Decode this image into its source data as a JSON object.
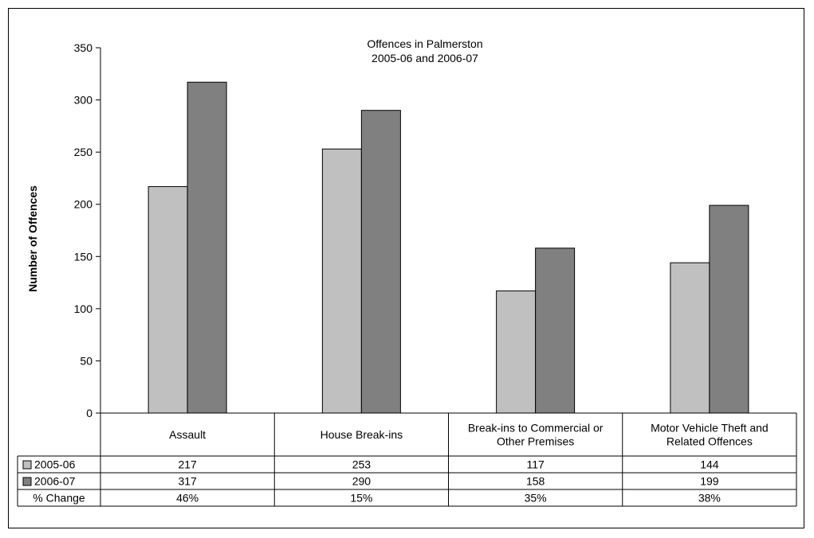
{
  "chart_data": {
    "type": "bar",
    "title_lines": [
      "Offences in Palmerston",
      "2005-06 and 2006-07"
    ],
    "ylabel": "Number of Offences",
    "ylim": [
      0,
      350
    ],
    "ytick_step": 50,
    "y_ticks": [
      "0",
      "50",
      "100",
      "150",
      "200",
      "250",
      "300",
      "350"
    ],
    "categories": [
      [
        "Assault"
      ],
      [
        "House Break-ins"
      ],
      [
        "Break-ins to Commercial or",
        "Other Premises"
      ],
      [
        "Motor Vehicle Theft and",
        "Related Offences"
      ]
    ],
    "series": [
      {
        "name": "2005-06",
        "values": [
          217,
          253,
          117,
          144
        ],
        "color": "#c0c0c0"
      },
      {
        "name": "2006-07",
        "values": [
          317,
          290,
          158,
          199
        ],
        "color": "#808080"
      }
    ],
    "table_rows": [
      {
        "label": "2005-06",
        "swatch": "#c0c0c0",
        "cells": [
          "217",
          "253",
          "117",
          "144"
        ]
      },
      {
        "label": "2006-07",
        "swatch": "#808080",
        "cells": [
          "317",
          "290",
          "158",
          "199"
        ]
      },
      {
        "label": "% Change",
        "swatch": null,
        "cells": [
          "46%",
          "15%",
          "35%",
          "38%"
        ]
      }
    ],
    "grid": false,
    "legend": "data-table"
  }
}
